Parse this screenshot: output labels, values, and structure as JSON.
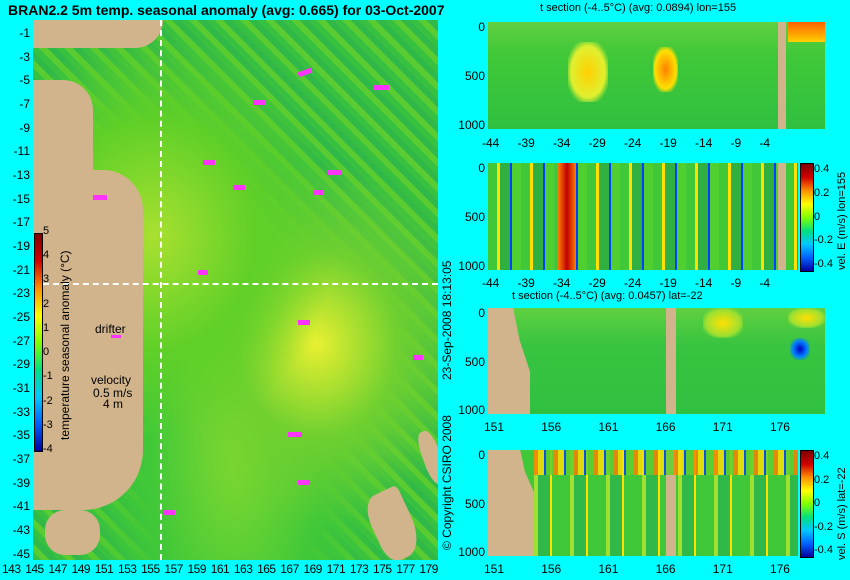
{
  "map": {
    "title": "BRAN2.2 5m temp. seasonal anomaly (avg: 0.665) for 03-Oct-2007",
    "y_ticks": [
      "-1",
      "-3",
      "-5",
      "-7",
      "-9",
      "-11",
      "-13",
      "-15",
      "-17",
      "-19",
      "-21",
      "-23",
      "-25",
      "-27",
      "-29",
      "-31",
      "-33",
      "-35",
      "-37",
      "-39",
      "-41",
      "-43",
      "-45"
    ],
    "x_ticks": [
      "143",
      "145",
      "147",
      "149",
      "151",
      "153",
      "155",
      "157",
      "159",
      "161",
      "163",
      "165",
      "167",
      "169",
      "171",
      "173",
      "175",
      "177",
      "179"
    ],
    "colorbar_ticks": [
      "5",
      "4",
      "3",
      "2",
      "1",
      "0",
      "-1",
      "-2",
      "-3",
      "-4"
    ],
    "colorbar_label": "temperature seasonal anomaly (°C)",
    "drifter_label": "drifter",
    "velocity_label": "velocity",
    "velocity_scale_top": "0.5 m/s",
    "velocity_scale_bottom": "4 m",
    "timestamp": "23-Sep-2008 18:13:05",
    "copyright": "© Copyright CSIRO 2008"
  },
  "panels": [
    {
      "title": "t section (-4..5°C) (avg: 0.0894) lon=155",
      "x_ticks": [
        "-44",
        "-39",
        "-34",
        "-29",
        "-24",
        "-19",
        "-14",
        "-9",
        "-4"
      ],
      "y_ticks": [
        "0",
        "500",
        "1000"
      ]
    },
    {
      "title": "",
      "x_ticks": [
        "-44",
        "-39",
        "-34",
        "-29",
        "-24",
        "-19",
        "-14",
        "-9",
        "-4"
      ],
      "y_ticks": [
        "0",
        "500",
        "1000"
      ],
      "cbar_ticks": [
        "0.4",
        "0.2",
        "0",
        "-0.2",
        "-0.4"
      ],
      "cbar_label": "vel. E (m/s) lon=155"
    },
    {
      "title": "t section (-4..5°C) (avg: 0.0457) lat=-22",
      "x_ticks": [
        "151",
        "156",
        "161",
        "166",
        "171",
        "176"
      ],
      "y_ticks": [
        "0",
        "500",
        "1000"
      ]
    },
    {
      "title": "",
      "x_ticks": [
        "151",
        "156",
        "161",
        "166",
        "171",
        "176"
      ],
      "y_ticks": [
        "0",
        "500",
        "1000"
      ],
      "cbar_ticks": [
        "0.4",
        "0.2",
        "0",
        "-0.2",
        "-0.4"
      ],
      "cbar_label": "vel. S (m/s) lat=-22"
    }
  ]
}
